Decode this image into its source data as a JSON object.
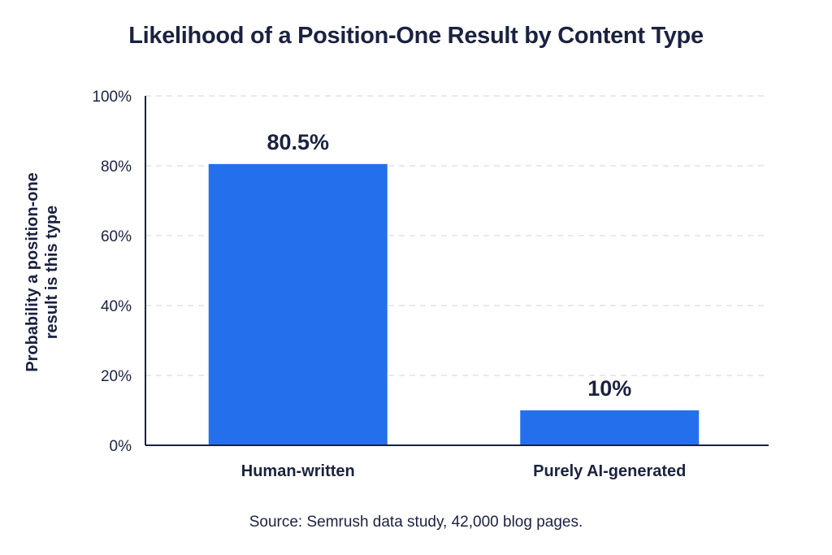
{
  "colors": {
    "bar": "#2470ec",
    "text": "#1b2240",
    "grid": "#d9dce3",
    "axis": "#1b2240"
  },
  "source_note": "Source: Semrush data study, 42,000 blog pages.",
  "chart_data": {
    "type": "bar",
    "title": "Likelihood of a Position-One Result by Content Type",
    "xlabel": "",
    "ylabel": "Probability a position-one result is this type",
    "ylabel_lines": [
      "Probability a position-one",
      "result is this type"
    ],
    "categories": [
      "Human-written",
      "Purely AI-generated"
    ],
    "values": [
      80.5,
      10
    ],
    "data_labels": [
      "80.5%",
      "10%"
    ],
    "ylim": [
      0,
      100
    ],
    "yticks": [
      0,
      20,
      40,
      60,
      80,
      100
    ],
    "ytick_labels": [
      "0%",
      "20%",
      "40%",
      "60%",
      "80%",
      "100%"
    ],
    "grid": true,
    "grid_style": "dashed",
    "legend": "none"
  }
}
